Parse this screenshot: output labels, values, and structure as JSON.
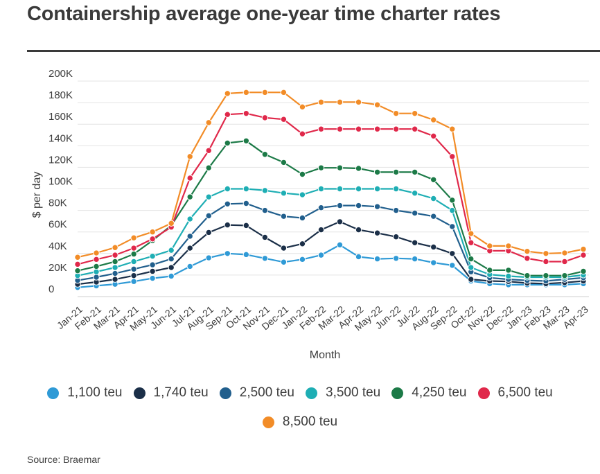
{
  "header": {
    "title": "Containership average one-year time charter rates"
  },
  "source": "Source: Braemar",
  "chart_data": {
    "type": "line",
    "xlabel": "Month",
    "ylabel": "$ per day",
    "ylim": [
      0,
      200000
    ],
    "yticks": [
      {
        "value": 0,
        "label": "0"
      },
      {
        "value": 20000,
        "label": "20K"
      },
      {
        "value": 40000,
        "label": "40K"
      },
      {
        "value": 60000,
        "label": "60K"
      },
      {
        "value": 80000,
        "label": "80K"
      },
      {
        "value": 100000,
        "label": "100K"
      },
      {
        "value": 120000,
        "label": "120K"
      },
      {
        "value": 140000,
        "label": "140K"
      },
      {
        "value": 160000,
        "label": "160K"
      },
      {
        "value": 180000,
        "label": "180K"
      },
      {
        "value": 200000,
        "label": "200K"
      }
    ],
    "categories": [
      "Jan-21",
      "Feb-21",
      "Mar-21",
      "Apr-21",
      "May-21",
      "Jun-21",
      "Jul-21",
      "Aug-21",
      "Sep-21",
      "Oct-21",
      "Nov-21",
      "Dec-21",
      "Jan-22",
      "Feb-22",
      "Mar-22",
      "Apr-22",
      "May-22",
      "Jun-22",
      "Jul-22",
      "Aug-22",
      "Sep-22",
      "Oct-22",
      "Nov-22",
      "Dec-22",
      "Jan-23",
      "Feb-23",
      "Mar-23",
      "Apr-23"
    ],
    "grid": true,
    "legend_position": "bottom",
    "series": [
      {
        "name": "1,100 teu",
        "color": "#2f9ad6",
        "values": [
          8500,
          10000,
          11500,
          14000,
          17000,
          19000,
          28000,
          36000,
          40000,
          39000,
          35500,
          32000,
          34500,
          38500,
          48000,
          37000,
          35000,
          35500,
          35000,
          31500,
          29000,
          14500,
          12000,
          11000,
          11000,
          11000,
          11000,
          12000
        ]
      },
      {
        "name": "1,740 teu",
        "color": "#1b2f48",
        "values": [
          11500,
          13500,
          16000,
          19500,
          23500,
          27000,
          45000,
          59500,
          66500,
          66000,
          55000,
          45000,
          49000,
          62000,
          69500,
          62000,
          59000,
          55500,
          50000,
          46000,
          40000,
          16000,
          14500,
          14000,
          12500,
          12000,
          13000,
          14500
        ]
      },
      {
        "name": "2,500 teu",
        "color": "#215f8d",
        "values": [
          15000,
          18000,
          21500,
          25500,
          29500,
          35000,
          56000,
          75000,
          86000,
          86500,
          80000,
          74500,
          73000,
          82500,
          84500,
          84500,
          83500,
          80000,
          77500,
          74500,
          65000,
          23000,
          17500,
          16000,
          15000,
          14500,
          16000,
          17500
        ]
      },
      {
        "name": "3,500 teu",
        "color": "#1eaeb4",
        "values": [
          19500,
          23000,
          27000,
          32500,
          37500,
          43000,
          72000,
          92500,
          100000,
          100000,
          98500,
          96000,
          94500,
          100000,
          100000,
          100000,
          100000,
          100000,
          96000,
          91000,
          80000,
          27000,
          20500,
          19000,
          18000,
          18000,
          18000,
          20000
        ]
      },
      {
        "name": "4,250 teu",
        "color": "#1c7a47",
        "values": [
          24000,
          28000,
          32500,
          39500,
          52000,
          66000,
          92500,
          119500,
          142500,
          144500,
          132000,
          124500,
          113500,
          119500,
          119500,
          119000,
          115500,
          115500,
          115500,
          108500,
          89500,
          35000,
          24500,
          24500,
          19500,
          19500,
          19500,
          23500
        ]
      },
      {
        "name": "6,500 teu",
        "color": "#e0284a",
        "values": [
          30000,
          34500,
          38500,
          45000,
          53500,
          64500,
          110000,
          135500,
          169000,
          170000,
          166000,
          164500,
          151000,
          155500,
          155500,
          155500,
          155500,
          155500,
          155500,
          149000,
          130000,
          50000,
          42500,
          42500,
          35500,
          32500,
          32500,
          38500
        ]
      },
      {
        "name": "8,500 teu",
        "color": "#f28c27",
        "values": [
          36500,
          40500,
          45500,
          54500,
          60000,
          68000,
          130000,
          161500,
          188500,
          189500,
          189500,
          189500,
          176000,
          180500,
          180500,
          180500,
          178000,
          170000,
          170000,
          164000,
          155500,
          58500,
          47000,
          47000,
          42000,
          40000,
          40500,
          44000
        ]
      }
    ]
  }
}
